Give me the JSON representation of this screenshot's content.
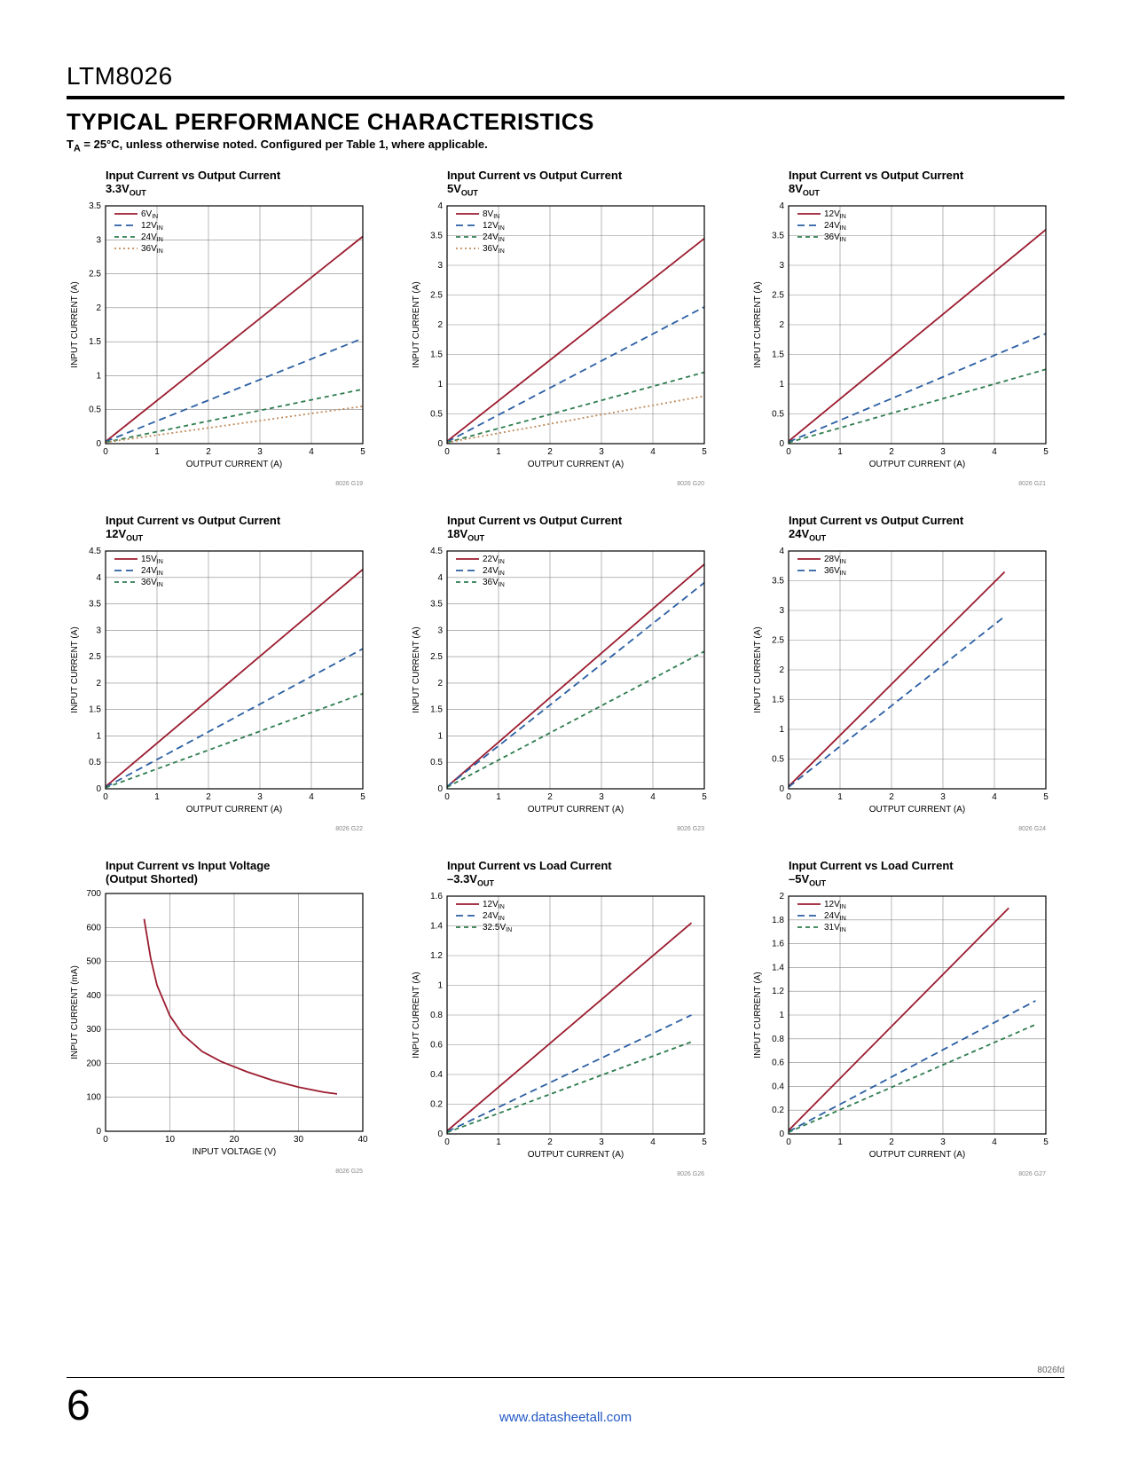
{
  "part_number": "LTM8026",
  "section_title": "TYPICAL PERFORMANCE CHARACTERISTICS",
  "conditions_prefix": "T",
  "conditions_sub": "A",
  "conditions_rest": " = 25°C, unless otherwise noted. Configured per Table 1, where applicable.",
  "footer_part": "8026fd",
  "page_number": "6",
  "footer_link": "www.datasheetall.com",
  "colors": {
    "red": "#9b1c2f",
    "blue": "#2b5fa3",
    "green": "#2e7d4f",
    "brown": "#c08a5a",
    "axis": "#000",
    "grid": "#888"
  },
  "charts": [
    {
      "title": "Input Current vs Output Current",
      "title2_pre": "3.3V",
      "title2_sub": "OUT",
      "fig_id": "8026 G19",
      "xlabel": "OUTPUT CURRENT (A)",
      "ylabel": "INPUT CURRENT (A)",
      "xlim": [
        0,
        5
      ],
      "xticks": [
        0,
        1,
        2,
        3,
        4,
        5
      ],
      "ylim": [
        0,
        3.5
      ],
      "yticks": [
        0,
        0.5,
        1.0,
        1.5,
        2.0,
        2.5,
        3.0,
        3.5
      ],
      "legend": [
        {
          "label": "6V",
          "sub": "IN",
          "color": "red",
          "dash": ""
        },
        {
          "label": "12V",
          "sub": "IN",
          "color": "blue",
          "dash": "8 5"
        },
        {
          "label": "24V",
          "sub": "IN",
          "color": "green",
          "dash": "5 4"
        },
        {
          "label": "36V",
          "sub": "IN",
          "color": "brown",
          "dash": "2 3"
        }
      ],
      "series": [
        {
          "color": "red",
          "dash": "",
          "pts": [
            [
              0,
              0.03
            ],
            [
              5,
              3.05
            ]
          ]
        },
        {
          "color": "blue",
          "dash": "8 5",
          "pts": [
            [
              0,
              0.03
            ],
            [
              5,
              1.55
            ]
          ]
        },
        {
          "color": "green",
          "dash": "5 4",
          "pts": [
            [
              0,
              0.02
            ],
            [
              5,
              0.8
            ]
          ]
        },
        {
          "color": "brown",
          "dash": "2 3",
          "pts": [
            [
              0,
              0.02
            ],
            [
              5,
              0.55
            ]
          ]
        }
      ]
    },
    {
      "title": "Input Current vs Output Current",
      "title2_pre": "5V",
      "title2_sub": "OUT",
      "fig_id": "8026 G20",
      "xlabel": "OUTPUT CURRENT (A)",
      "ylabel": "INPUT CURRENT (A)",
      "xlim": [
        0,
        5
      ],
      "xticks": [
        0,
        1,
        2,
        3,
        4,
        5
      ],
      "ylim": [
        0,
        4.0
      ],
      "yticks": [
        0,
        0.5,
        1.0,
        1.5,
        2.0,
        2.5,
        3.0,
        3.5,
        4.0
      ],
      "legend": [
        {
          "label": "8V",
          "sub": "IN",
          "color": "red",
          "dash": ""
        },
        {
          "label": "12V",
          "sub": "IN",
          "color": "blue",
          "dash": "8 5"
        },
        {
          "label": "24V",
          "sub": "IN",
          "color": "green",
          "dash": "5 4"
        },
        {
          "label": "36V",
          "sub": "IN",
          "color": "brown",
          "dash": "2 3"
        }
      ],
      "series": [
        {
          "color": "red",
          "dash": "",
          "pts": [
            [
              0,
              0.04
            ],
            [
              5,
              3.45
            ]
          ]
        },
        {
          "color": "blue",
          "dash": "8 5",
          "pts": [
            [
              0,
              0.03
            ],
            [
              5,
              2.3
            ]
          ]
        },
        {
          "color": "green",
          "dash": "5 4",
          "pts": [
            [
              0,
              0.02
            ],
            [
              5,
              1.2
            ]
          ]
        },
        {
          "color": "brown",
          "dash": "2 3",
          "pts": [
            [
              0,
              0.02
            ],
            [
              5,
              0.8
            ]
          ]
        }
      ]
    },
    {
      "title": "Input Current vs Output Current",
      "title2_pre": "8V",
      "title2_sub": "OUT",
      "fig_id": "8026 G21",
      "xlabel": "OUTPUT CURRENT (A)",
      "ylabel": "INPUT CURRENT (A)",
      "xlim": [
        0,
        5
      ],
      "xticks": [
        0,
        1,
        2,
        3,
        4,
        5
      ],
      "ylim": [
        0,
        4.0
      ],
      "yticks": [
        0,
        0.5,
        1.0,
        1.5,
        2.0,
        2.5,
        3.0,
        3.5,
        4.0
      ],
      "legend": [
        {
          "label": "12V",
          "sub": "IN",
          "color": "red",
          "dash": ""
        },
        {
          "label": "24V",
          "sub": "IN",
          "color": "blue",
          "dash": "8 5"
        },
        {
          "label": "36V",
          "sub": "IN",
          "color": "green",
          "dash": "5 4"
        }
      ],
      "series": [
        {
          "color": "red",
          "dash": "",
          "pts": [
            [
              0,
              0.04
            ],
            [
              5,
              3.6
            ]
          ]
        },
        {
          "color": "blue",
          "dash": "8 5",
          "pts": [
            [
              0,
              0.03
            ],
            [
              5,
              1.85
            ]
          ]
        },
        {
          "color": "green",
          "dash": "5 4",
          "pts": [
            [
              0,
              0.02
            ],
            [
              5,
              1.25
            ]
          ]
        }
      ]
    },
    {
      "title": "Input Current vs Output Current",
      "title2_pre": "12V",
      "title2_sub": "OUT",
      "fig_id": "8026 G22",
      "xlabel": "OUTPUT CURRENT (A)",
      "ylabel": "INPUT CURRENT (A)",
      "xlim": [
        0,
        5
      ],
      "xticks": [
        0,
        1,
        2,
        3,
        4,
        5
      ],
      "ylim": [
        0,
        4.5
      ],
      "yticks": [
        0,
        0.5,
        1.0,
        1.5,
        2.0,
        2.5,
        3.0,
        3.5,
        4.0,
        4.5
      ],
      "legend": [
        {
          "label": "15V",
          "sub": "IN",
          "color": "red",
          "dash": ""
        },
        {
          "label": "24V",
          "sub": "IN",
          "color": "blue",
          "dash": "8 5"
        },
        {
          "label": "36V",
          "sub": "IN",
          "color": "green",
          "dash": "5 4"
        }
      ],
      "series": [
        {
          "color": "red",
          "dash": "",
          "pts": [
            [
              0,
              0.04
            ],
            [
              5,
              4.15
            ]
          ]
        },
        {
          "color": "blue",
          "dash": "8 5",
          "pts": [
            [
              0,
              0.03
            ],
            [
              5,
              2.65
            ]
          ]
        },
        {
          "color": "green",
          "dash": "5 4",
          "pts": [
            [
              0,
              0.02
            ],
            [
              5,
              1.8
            ]
          ]
        }
      ]
    },
    {
      "title": "Input Current vs Output Current",
      "title2_pre": "18V",
      "title2_sub": "OUT",
      "fig_id": "8026 G23",
      "xlabel": "OUTPUT CURRENT (A)",
      "ylabel": "INPUT CURRENT (A)",
      "xlim": [
        0,
        5
      ],
      "xticks": [
        0,
        1,
        2,
        3,
        4,
        5
      ],
      "ylim": [
        0,
        4.5
      ],
      "yticks": [
        0,
        0.5,
        1.0,
        1.5,
        2.0,
        2.5,
        3.0,
        3.5,
        4.0,
        4.5
      ],
      "legend": [
        {
          "label": "22V",
          "sub": "IN",
          "color": "red",
          "dash": ""
        },
        {
          "label": "24V",
          "sub": "IN",
          "color": "blue",
          "dash": "8 5"
        },
        {
          "label": "36V",
          "sub": "IN",
          "color": "green",
          "dash": "5 4"
        }
      ],
      "series": [
        {
          "color": "red",
          "dash": "",
          "pts": [
            [
              0,
              0.04
            ],
            [
              5,
              4.25
            ]
          ]
        },
        {
          "color": "blue",
          "dash": "8 5",
          "pts": [
            [
              0,
              0.04
            ],
            [
              5,
              3.9
            ]
          ]
        },
        {
          "color": "green",
          "dash": "5 4",
          "pts": [
            [
              0,
              0.03
            ],
            [
              5,
              2.6
            ]
          ]
        }
      ]
    },
    {
      "title": "Input Current vs Output Current",
      "title2_pre": "24V",
      "title2_sub": "OUT",
      "fig_id": "8026 G24",
      "xlabel": "OUTPUT CURRENT (A)",
      "ylabel": "INPUT CURRENT (A)",
      "xlim": [
        0,
        5
      ],
      "xticks": [
        0,
        1,
        2,
        3,
        4,
        5
      ],
      "ylim": [
        0,
        4.0
      ],
      "yticks": [
        0,
        0.5,
        1.0,
        1.5,
        2.0,
        2.5,
        3.0,
        3.5,
        4.0
      ],
      "legend": [
        {
          "label": "28V",
          "sub": "IN",
          "color": "red",
          "dash": ""
        },
        {
          "label": "36V",
          "sub": "IN",
          "color": "blue",
          "dash": "8 5"
        }
      ],
      "series": [
        {
          "color": "red",
          "dash": "",
          "pts": [
            [
              0,
              0.04
            ],
            [
              4.2,
              3.65
            ]
          ]
        },
        {
          "color": "blue",
          "dash": "8 5",
          "pts": [
            [
              0,
              0.03
            ],
            [
              4.2,
              2.9
            ]
          ]
        }
      ]
    },
    {
      "title": "Input Current vs Input Voltage",
      "title2_plain": "(Output Shorted)",
      "fig_id": "8026 G25",
      "xlabel": "INPUT VOLTAGE (V)",
      "ylabel": "INPUT CURRENT (mA)",
      "xlim": [
        0,
        40
      ],
      "xticks": [
        0,
        10,
        20,
        30,
        40
      ],
      "ylim": [
        0,
        700
      ],
      "yticks": [
        0,
        100,
        200,
        300,
        400,
        500,
        600,
        700
      ],
      "legend": [],
      "series": [
        {
          "color": "red",
          "dash": "",
          "pts": [
            [
              6,
              625
            ],
            [
              7,
              510
            ],
            [
              8,
              430
            ],
            [
              10,
              340
            ],
            [
              12,
              285
            ],
            [
              15,
              235
            ],
            [
              18,
              205
            ],
            [
              22,
              175
            ],
            [
              26,
              150
            ],
            [
              30,
              130
            ],
            [
              34,
              115
            ],
            [
              36,
              110
            ]
          ]
        }
      ]
    },
    {
      "title": "Input Current vs Load Current",
      "title2_pre": "–3.3V",
      "title2_sub": "OUT",
      "fig_id": "8026 G26",
      "xlabel": "OUTPUT CURRENT (A)",
      "ylabel": "INPUT CURRENT (A)",
      "xlim": [
        0,
        5
      ],
      "xticks": [
        0,
        1,
        2,
        3,
        4,
        5
      ],
      "ylim": [
        0,
        1.6
      ],
      "yticks": [
        0,
        0.2,
        0.4,
        0.6,
        0.8,
        1.0,
        1.2,
        1.4,
        1.6
      ],
      "legend": [
        {
          "label": "12V",
          "sub": "IN",
          "color": "red",
          "dash": ""
        },
        {
          "label": "24V",
          "sub": "IN",
          "color": "blue",
          "dash": "8 5"
        },
        {
          "label": "32.5V",
          "sub": "IN",
          "color": "green",
          "dash": "5 4"
        }
      ],
      "series": [
        {
          "color": "red",
          "dash": "",
          "pts": [
            [
              0,
              0.02
            ],
            [
              4.75,
              1.42
            ]
          ]
        },
        {
          "color": "blue",
          "dash": "8 5",
          "pts": [
            [
              0,
              0.015
            ],
            [
              4.75,
              0.8
            ]
          ]
        },
        {
          "color": "green",
          "dash": "5 4",
          "pts": [
            [
              0,
              0.01
            ],
            [
              4.75,
              0.62
            ]
          ]
        }
      ]
    },
    {
      "title": "Input Current vs Load Current",
      "title2_pre": "–5V",
      "title2_sub": "OUT",
      "fig_id": "8026 G27",
      "xlabel": "OUTPUT CURRENT (A)",
      "ylabel": "INPUT CURRENT (A)",
      "xlim": [
        0,
        5
      ],
      "xticks": [
        0,
        1,
        2,
        3,
        4,
        5
      ],
      "ylim": [
        0,
        2.0
      ],
      "yticks": [
        0,
        0.2,
        0.4,
        0.6,
        0.8,
        1.0,
        1.2,
        1.4,
        1.6,
        1.8,
        2.0
      ],
      "legend": [
        {
          "label": "12V",
          "sub": "IN",
          "color": "red",
          "dash": ""
        },
        {
          "label": "24V",
          "sub": "IN",
          "color": "blue",
          "dash": "8 5"
        },
        {
          "label": "31V",
          "sub": "IN",
          "color": "green",
          "dash": "5 4"
        }
      ],
      "series": [
        {
          "color": "red",
          "dash": "",
          "pts": [
            [
              0,
              0.03
            ],
            [
              4.28,
              1.9
            ]
          ]
        },
        {
          "color": "blue",
          "dash": "8 5",
          "pts": [
            [
              0,
              0.02
            ],
            [
              4.8,
              1.12
            ]
          ]
        },
        {
          "color": "green",
          "dash": "5 4",
          "pts": [
            [
              0,
              0.015
            ],
            [
              4.8,
              0.92
            ]
          ]
        }
      ]
    }
  ]
}
